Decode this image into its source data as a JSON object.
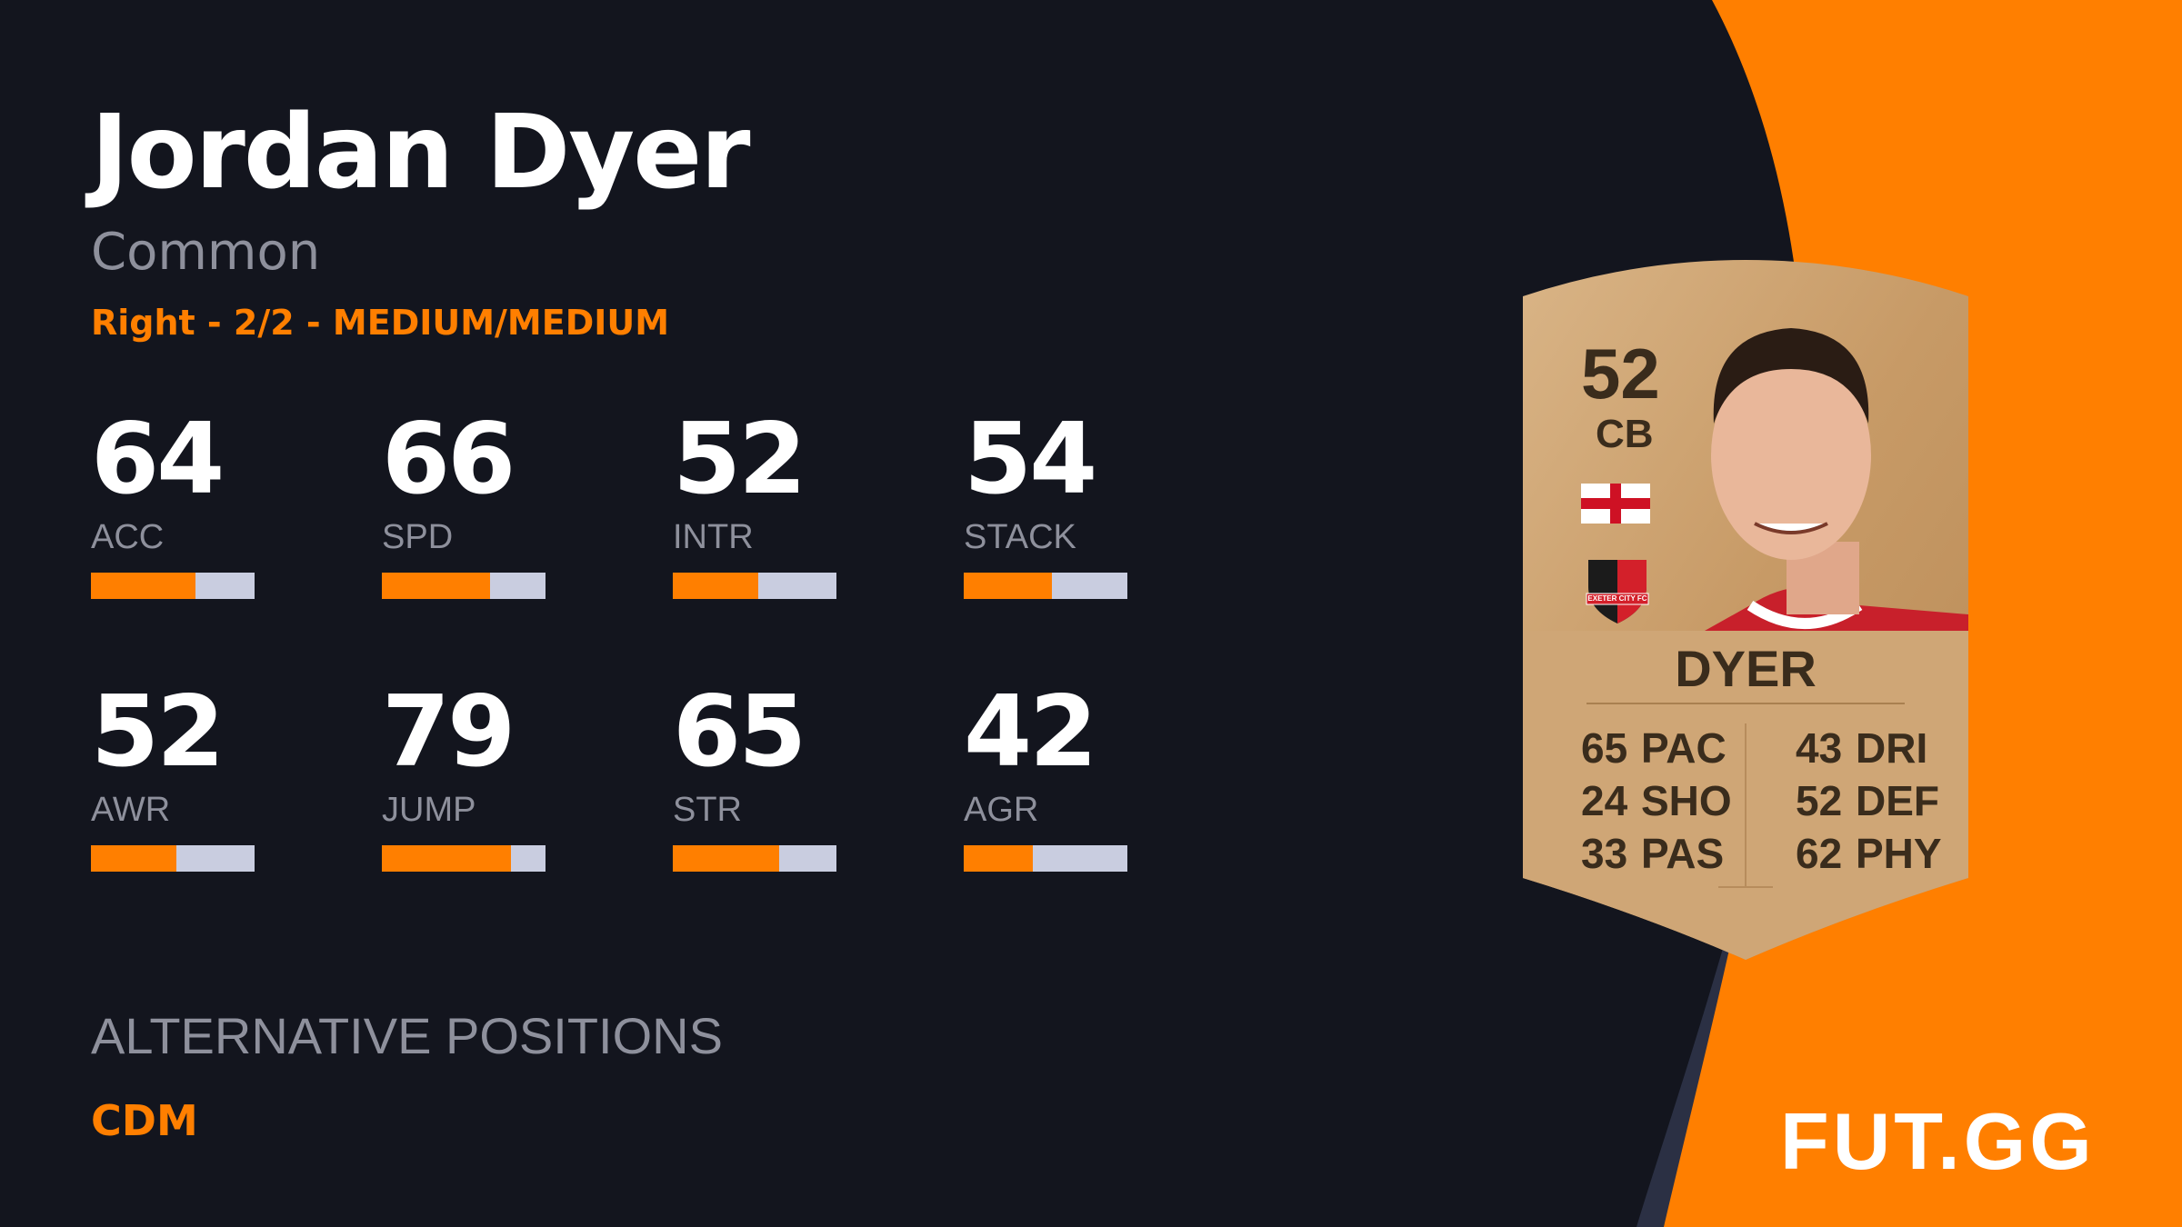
{
  "player": {
    "name": "Jordan Dyer",
    "rarity": "Common",
    "info": "Right - 2/2 - MEDIUM/MEDIUM"
  },
  "stats": [
    {
      "value": "64",
      "label": "ACC",
      "percent": 64
    },
    {
      "value": "66",
      "label": "SPD",
      "percent": 66
    },
    {
      "value": "52",
      "label": "INTR",
      "percent": 52
    },
    {
      "value": "54",
      "label": "STACK",
      "percent": 54
    },
    {
      "value": "52",
      "label": "AWR",
      "percent": 52
    },
    {
      "value": "79",
      "label": "JUMP",
      "percent": 79
    },
    {
      "value": "65",
      "label": "STR",
      "percent": 65
    },
    {
      "value": "42",
      "label": "AGR",
      "percent": 42
    }
  ],
  "alternative_positions": {
    "heading": "ALTERNATIVE POSITIONS",
    "value": "CDM"
  },
  "card": {
    "rating": "52",
    "position": "CB",
    "name": "DYER",
    "nation_flag": "england-flag",
    "club_badge": "EXETER CITY FC",
    "left": [
      {
        "value": "65",
        "label": "PAC"
      },
      {
        "value": "24",
        "label": "SHO"
      },
      {
        "value": "33",
        "label": "PAS"
      }
    ],
    "right": [
      {
        "value": "43",
        "label": "DRI"
      },
      {
        "value": "52",
        "label": "DEF"
      },
      {
        "value": "62",
        "label": "PHY"
      }
    ]
  },
  "logo": "FUT.GG",
  "colors": {
    "accent": "#ff7f00",
    "background": "#13151e",
    "bar_track": "#c9cde0",
    "card_gold": "#c9a06e"
  }
}
